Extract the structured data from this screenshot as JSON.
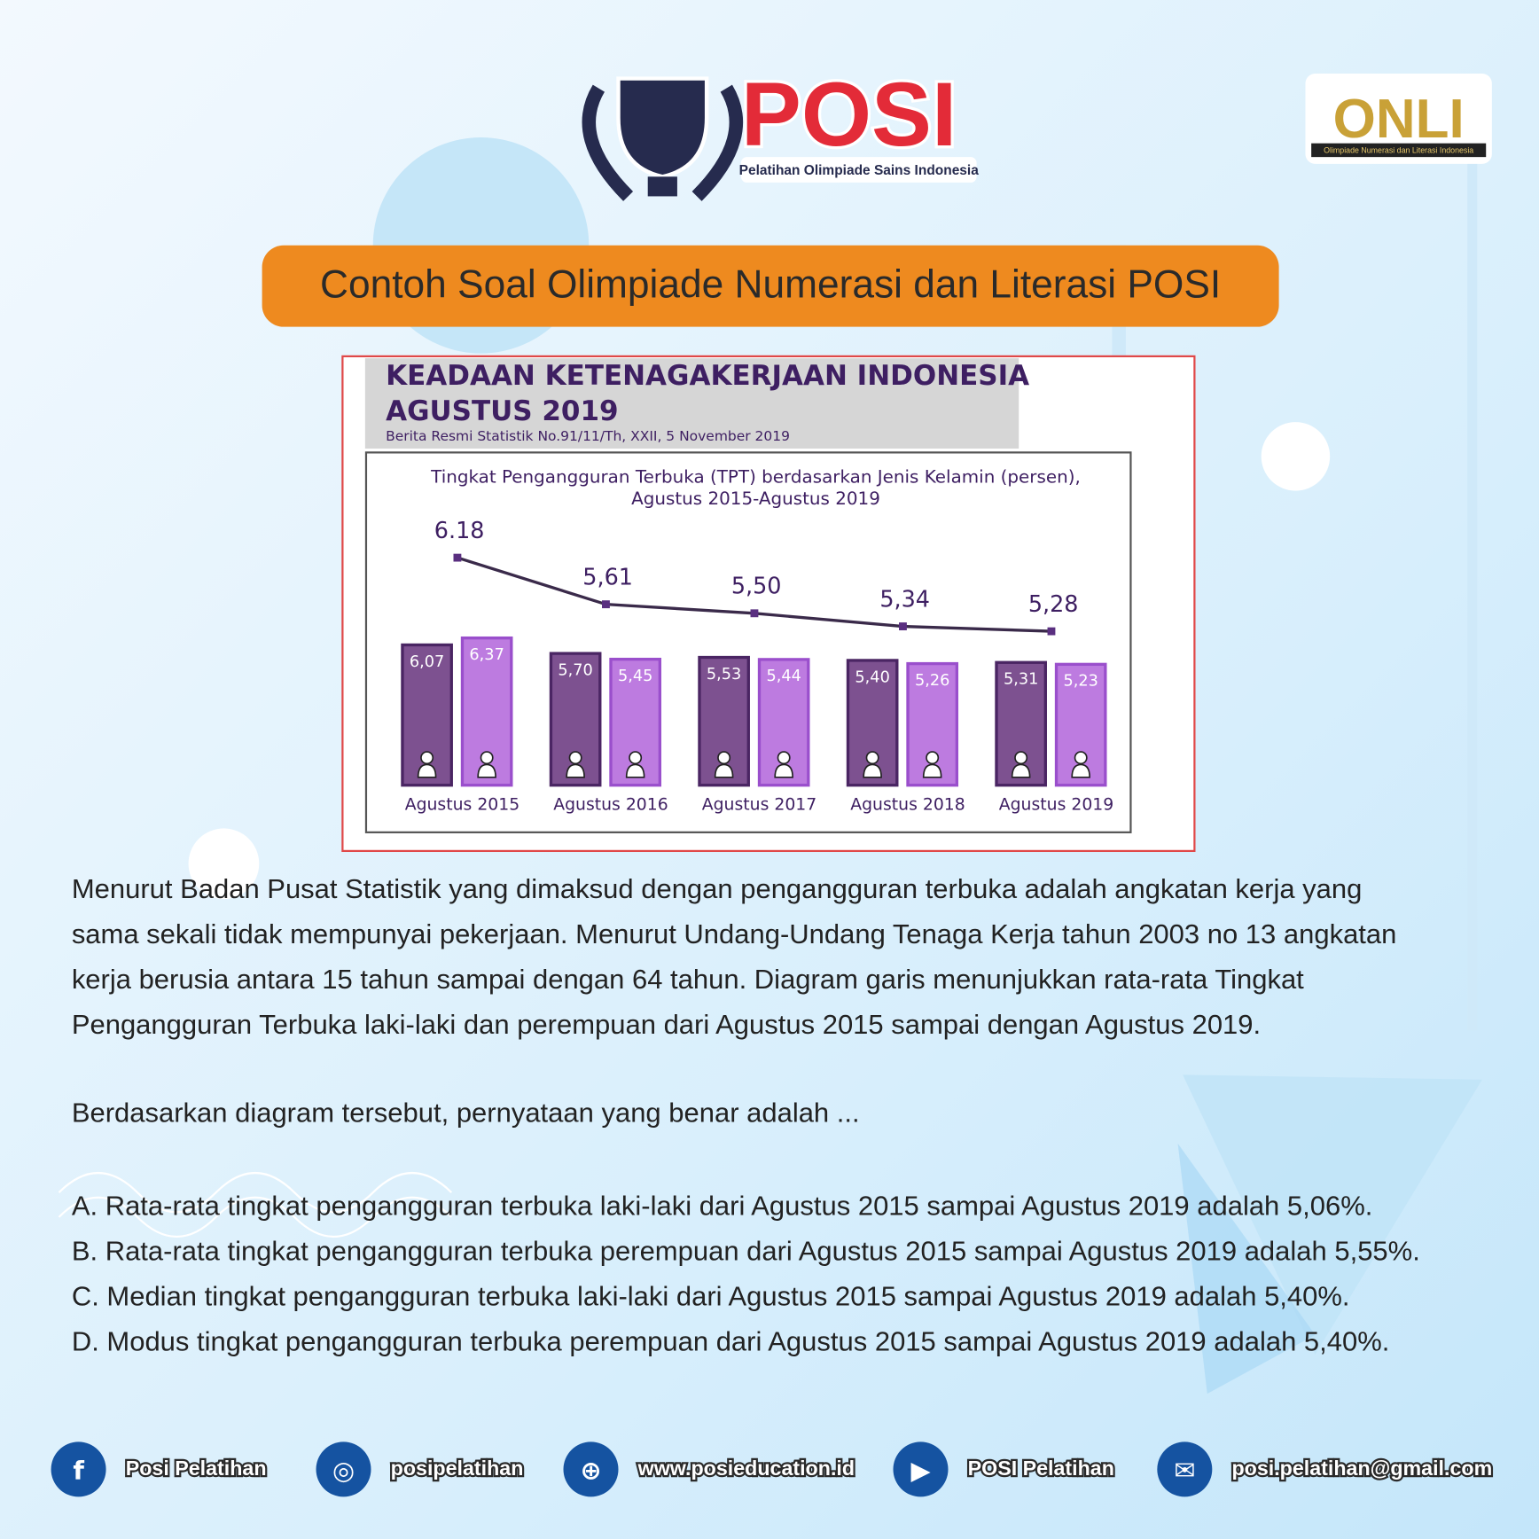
{
  "logo": {
    "name": "POSI",
    "tagline": "Pelatihan Olimpiade Sains Indonesia"
  },
  "badge": {
    "name": "ONLI",
    "tagline": "Olimpiade Numerasi dan Literasi Indonesia"
  },
  "banner": "Contoh Soal Olimpiade Numerasi dan Literasi POSI",
  "chart_data": {
    "type": "bar",
    "header": [
      "KEADAAN KETENAGAKERJAAN INDONESIA",
      "AGUSTUS 2019"
    ],
    "source": "Berita Resmi Statistik No.91/11/Th, XXII, 5 November 2019",
    "title": "Tingkat Pengangguran Terbuka (TPT) berdasarkan Jenis Kelamin (persen),",
    "subtitle": "Agustus 2015-Agustus 2019",
    "categories": [
      "Agustus 2015",
      "Agustus 2016",
      "Agustus 2017",
      "Agustus 2018",
      "Agustus 2019"
    ],
    "series": [
      {
        "type": "bar",
        "color": "#7d5190",
        "values": [
          6.07,
          5.7,
          5.53,
          5.4,
          5.31
        ],
        "value_labels": [
          "6,07",
          "5,70",
          "5,53",
          "5,40",
          "5,31"
        ]
      },
      {
        "type": "bar",
        "color": "#bd7be0",
        "values": [
          6.37,
          5.45,
          5.44,
          5.26,
          5.23
        ],
        "value_labels": [
          "6,37",
          "5,45",
          "5,44",
          "5,26",
          "5,23"
        ]
      },
      {
        "type": "line",
        "color": "#3a2a4a",
        "values": [
          6.18,
          5.61,
          5.5,
          5.34,
          5.28
        ],
        "value_labels": [
          "6.18",
          "5,61",
          "5,50",
          "5,34",
          "5,28"
        ]
      }
    ]
  },
  "paragraph": [
    "Menurut Badan Pusat Statistik yang dimaksud dengan pengangguran terbuka adalah angkatan kerja yang",
    "sama sekali tidak mempunyai pekerjaan. Menurut Undang-Undang Tenaga Kerja tahun 2003 no 13 angkatan",
    "kerja berusia antara 15 tahun sampai dengan 64 tahun. Diagram garis menunjukkan rata-rata Tingkat",
    "Pengangguran Terbuka laki-laki dan perempuan dari Agustus 2015 sampai dengan Agustus 2019."
  ],
  "question": "Berdasarkan diagram tersebut, pernyataan yang benar adalah ...",
  "options": [
    "A. Rata-rata tingkat pengangguran terbuka laki-laki dari Agustus 2015 sampai Agustus 2019 adalah 5,06%.",
    "B. Rata-rata tingkat pengangguran terbuka perempuan dari Agustus 2015 sampai Agustus 2019 adalah 5,55%.",
    "C. Median tingkat pengangguran terbuka laki-laki dari Agustus 2015 sampai Agustus 2019 adalah 5,40%.",
    "D. Modus tingkat pengangguran terbuka perempuan dari Agustus 2015 sampai Agustus 2019 adalah 5,40%."
  ],
  "footer": [
    "Posi Pelatihan",
    "posipelatihan",
    "www.posieducation.id",
    "POSI Pelatihan",
    "posi.pelatihan@gmail.com"
  ]
}
